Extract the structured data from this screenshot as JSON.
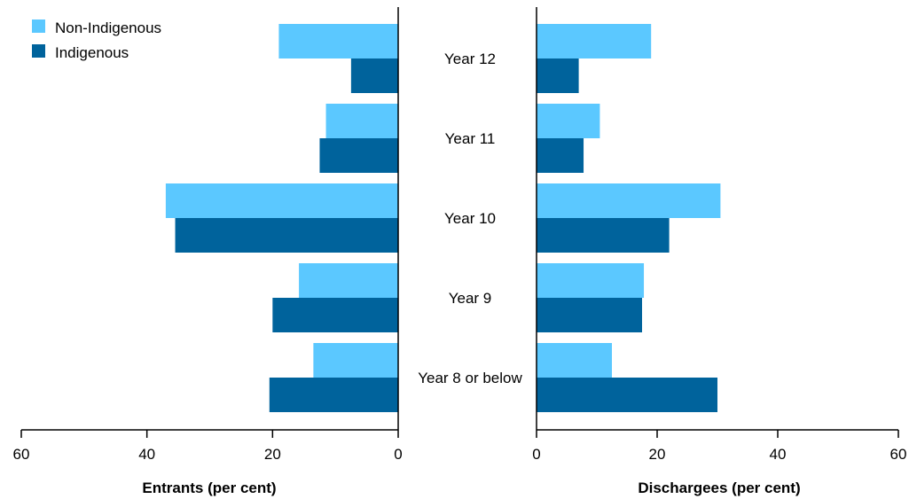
{
  "chart_data": {
    "type": "bar",
    "orientation": "horizontal",
    "layout": "back-to-back",
    "categories": [
      "Year 12",
      "Year 11",
      "Year 10",
      "Year 9",
      "Year 8 or below"
    ],
    "legend": {
      "placement": "top-left",
      "entries": [
        "Non-Indigenous",
        "Indigenous"
      ]
    },
    "grid": false,
    "panels": [
      {
        "xlabel": "Entrants (per cent)",
        "xlim": [
          0,
          60
        ],
        "direction": "reversed",
        "ticks": [
          60,
          40,
          20,
          0
        ],
        "series": [
          {
            "name": "Non-Indigenous",
            "color": "#5BC8FF",
            "values": [
              19,
              11.5,
              37,
              15.8,
              13.5
            ]
          },
          {
            "name": "Indigenous",
            "color": "#00639C",
            "values": [
              7.5,
              12.5,
              35.5,
              20,
              20.5
            ]
          }
        ]
      },
      {
        "xlabel": "Dischargees (per cent)",
        "xlim": [
          0,
          60
        ],
        "direction": "normal",
        "ticks": [
          0,
          20,
          40,
          60
        ],
        "series": [
          {
            "name": "Non-Indigenous",
            "color": "#5BC8FF",
            "values": [
              19,
              10.5,
              30.5,
              17.8,
              12.5
            ]
          },
          {
            "name": "Indigenous",
            "color": "#00639C",
            "values": [
              7,
              7.8,
              22,
              17.5,
              30
            ]
          }
        ]
      }
    ]
  }
}
